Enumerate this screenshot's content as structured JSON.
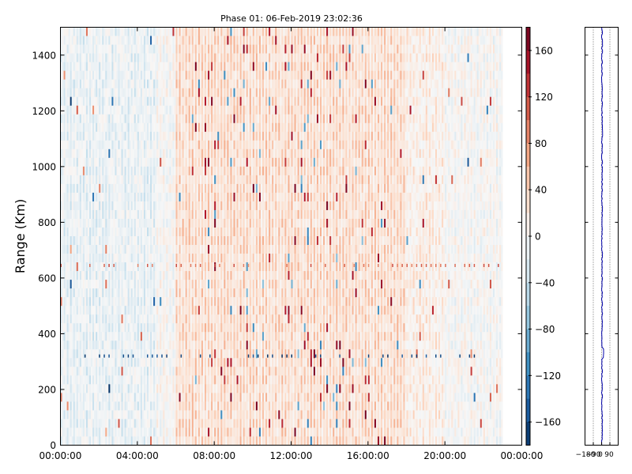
{
  "chart_data": {
    "type": "heatmap",
    "title": "Phase 01: 06-Feb-2019 23:02:36",
    "ylabel": "Range (Km)",
    "xlabel": "",
    "xlim": [
      "00:00:00",
      "24:00:00"
    ],
    "ylim": [
      0,
      1500
    ],
    "xticks": [
      "00:00:00",
      "04:00:00",
      "08:00:00",
      "12:00:00",
      "16:00:00",
      "20:00:00",
      "00:00:00"
    ],
    "yticks": [
      "0",
      "200",
      "400",
      "600",
      "800",
      "1000",
      "1200",
      "1400"
    ],
    "colorbar": {
      "colormap": "RdBu_r",
      "range": [
        -180,
        180
      ],
      "ticks": [
        "160",
        "120",
        "80",
        "40",
        "0",
        "−40",
        "−80",
        "−120",
        "−160"
      ]
    },
    "profile_panel": {
      "xticks": [
        "−180",
        "−90",
        "0",
        "90"
      ],
      "xlim": [
        -180,
        180
      ],
      "line_color": "#0000aa",
      "gridlines": "dotted"
    },
    "data_extent": {
      "time_start": "00:00:00",
      "time_end": "23:00:00",
      "range_start_km": 0,
      "range_end_km": 1500
    }
  }
}
